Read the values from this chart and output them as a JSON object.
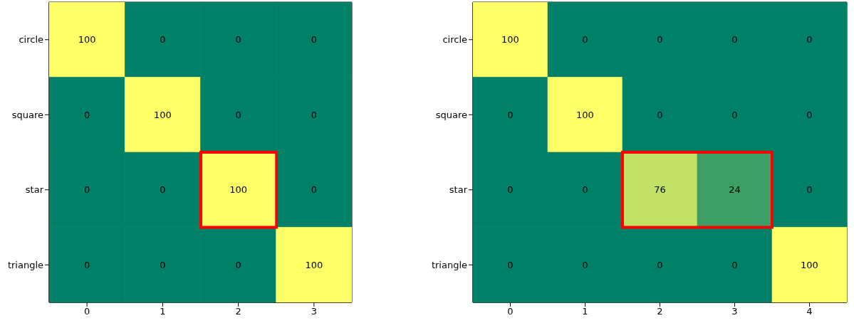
{
  "chart_data": [
    {
      "type": "heatmap",
      "categories": [
        "0",
        "1",
        "2",
        "3"
      ],
      "y_categories": [
        "circle",
        "square",
        "star",
        "triangle"
      ],
      "cells": [
        [
          100,
          0,
          0,
          0
        ],
        [
          0,
          100,
          0,
          0
        ],
        [
          0,
          0,
          100,
          0
        ],
        [
          0,
          0,
          0,
          100
        ]
      ],
      "data_labels": true
    },
    {
      "type": "heatmap",
      "categories": [
        "0",
        "1",
        "2",
        "3",
        "4"
      ],
      "y_categories": [
        "circle",
        "square",
        "star",
        "triangle"
      ],
      "cells": [
        [
          100,
          0,
          0,
          0,
          0
        ],
        [
          0,
          100,
          0,
          0,
          0
        ],
        [
          0,
          0,
          76,
          24,
          0
        ],
        [
          0,
          0,
          0,
          0,
          100
        ]
      ],
      "data_labels": true
    }
  ]
}
